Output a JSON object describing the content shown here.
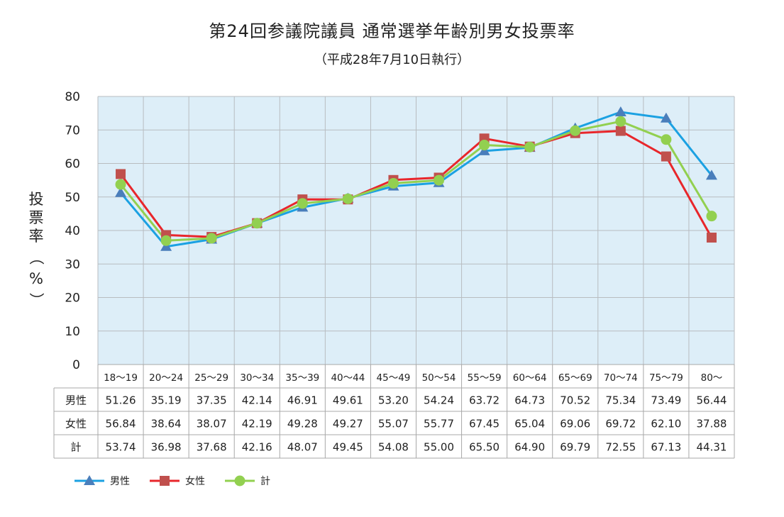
{
  "title": "第24回参議院議員 通常選挙年齢別男女投票率",
  "subtitle": "（平成28年7月10日執行）",
  "ylabel": "投票率（%）",
  "chart_data": {
    "type": "line",
    "title": "第24回参議院議員 通常選挙年齢別男女投票率",
    "subtitle": "（平成28年7月10日執行）",
    "xlabel": "",
    "ylabel": "投票率（%）",
    "ylim": [
      0,
      80
    ],
    "yticks": [
      0,
      10,
      20,
      30,
      40,
      50,
      60,
      70,
      80
    ],
    "grid": true,
    "legend_position": "bottom-left",
    "categories": [
      "18～19",
      "20～24",
      "25～29",
      "30～34",
      "35～39",
      "40～44",
      "45～49",
      "50～54",
      "55～59",
      "60～64",
      "65～69",
      "70～74",
      "75～79",
      "80～"
    ],
    "series": [
      {
        "name": "男性",
        "color": "#1ba1e2",
        "marker": "triangle",
        "values": [
          51.26,
          35.19,
          37.35,
          42.14,
          46.91,
          49.61,
          53.2,
          54.24,
          63.72,
          64.73,
          70.52,
          75.34,
          73.49,
          56.44
        ],
        "labels": [
          "51.26",
          "35.19",
          "37.35",
          "42.14",
          "46.91",
          "49.61",
          "53.20",
          "54.24",
          "63.72",
          "64.73",
          "70.52",
          "75.34",
          "73.49",
          "56.44"
        ]
      },
      {
        "name": "女性",
        "color": "#e8262b",
        "marker": "square",
        "values": [
          56.84,
          38.64,
          38.07,
          42.19,
          49.28,
          49.27,
          55.07,
          55.77,
          67.45,
          65.04,
          69.06,
          69.72,
          62.1,
          37.88
        ],
        "labels": [
          "56.84",
          "38.64",
          "38.07",
          "42.19",
          "49.28",
          "49.27",
          "55.07",
          "55.77",
          "67.45",
          "65.04",
          "69.06",
          "69.72",
          "62.10",
          "37.88"
        ]
      },
      {
        "name": "計",
        "color": "#92d050",
        "marker": "circle",
        "values": [
          53.74,
          36.98,
          37.68,
          42.16,
          48.07,
          49.45,
          54.08,
          55.0,
          65.5,
          64.9,
          69.79,
          72.55,
          67.13,
          44.31
        ],
        "labels": [
          "53.74",
          "36.98",
          "37.68",
          "42.16",
          "48.07",
          "49.45",
          "54.08",
          "55.00",
          "65.50",
          "64.90",
          "69.79",
          "72.55",
          "67.13",
          "44.31"
        ]
      }
    ]
  },
  "colors": {
    "plot_background": "#ddeef8",
    "grid": "#b8bcc0",
    "table_border": "#a8a8a8",
    "male_marker": "#4a7ebb",
    "female_marker": "#c0504d"
  }
}
